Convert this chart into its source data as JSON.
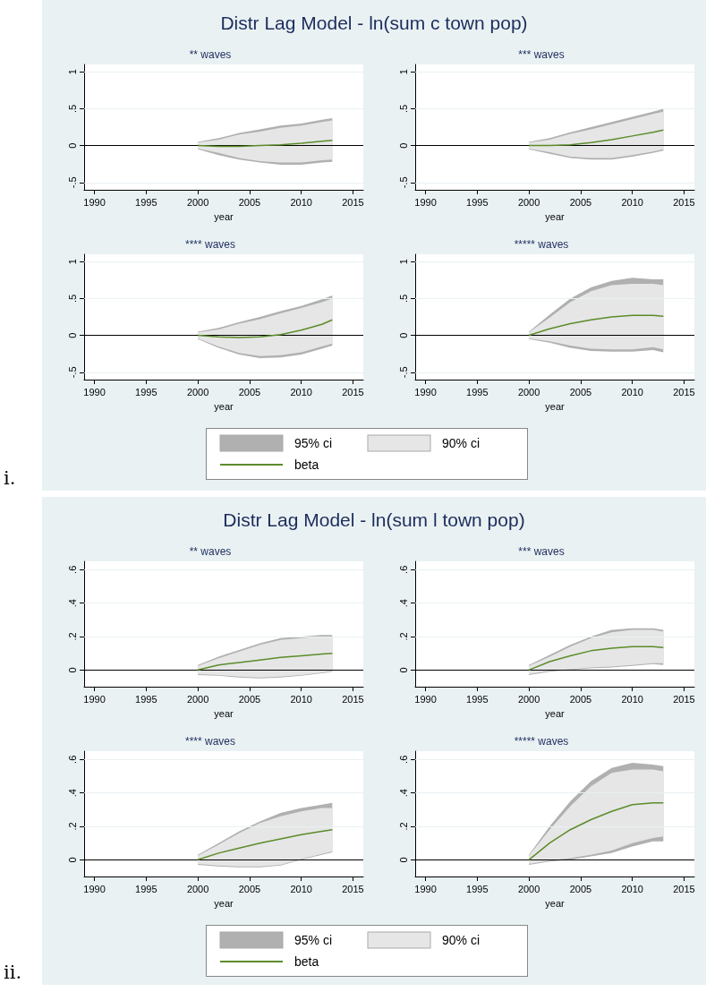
{
  "chart_data": [
    {
      "type": "line",
      "title": "** waves",
      "xlabel": "year",
      "annotations": [
        "Distr Lag Model - ln(sum c town pop)",
        "i."
      ],
      "x": [
        2000,
        2002,
        2004,
        2006,
        2008,
        2010,
        2012,
        2013
      ],
      "xlim": [
        1989,
        2016
      ],
      "xticks": [
        1990,
        1995,
        2000,
        2005,
        2010,
        2015
      ],
      "ylim": [
        -0.6,
        1.1
      ],
      "yticks": [
        {
          "value": -0.5,
          "label": "-.5"
        },
        {
          "value": 0,
          "label": "0"
        },
        {
          "value": 0.5,
          "label": ".5"
        },
        {
          "value": 1,
          "label": "1"
        }
      ],
      "grid": "y",
      "ref_lines": [
        {
          "axis": "y",
          "value": 0,
          "color": "#000000"
        }
      ],
      "series": [
        {
          "color": "#b0b0b0",
          "values": [
            null,
            null,
            null,
            null,
            null,
            null,
            null,
            null
          ],
          "lower": [
            -0.05,
            -0.13,
            -0.19,
            -0.23,
            -0.26,
            -0.26,
            -0.23,
            -0.22
          ],
          "upper": [
            0.05,
            0.1,
            0.17,
            0.22,
            0.27,
            0.3,
            0.35,
            0.37
          ]
        },
        {
          "color": "#e6e6e6",
          "values": [
            null,
            null,
            null,
            null,
            null,
            null,
            null,
            null
          ],
          "lower": [
            -0.04,
            -0.1,
            -0.17,
            -0.21,
            -0.23,
            -0.23,
            -0.2,
            -0.19
          ],
          "upper": [
            0.04,
            0.08,
            0.15,
            0.19,
            0.24,
            0.27,
            0.32,
            0.34
          ]
        },
        {
          "color": "#5b8c2a",
          "values": [
            0,
            -0.01,
            -0.01,
            0,
            0.01,
            0.03,
            0.06,
            0.07
          ]
        }
      ]
    },
    {
      "type": "line",
      "title": "*** waves",
      "xlabel": "year",
      "x": [
        2000,
        2002,
        2004,
        2006,
        2008,
        2010,
        2012,
        2013
      ],
      "xlim": [
        1989,
        2016
      ],
      "xticks": [
        1990,
        1995,
        2000,
        2005,
        2010,
        2015
      ],
      "ylim": [
        -0.6,
        1.1
      ],
      "yticks": [
        {
          "value": -0.5,
          "label": "-.5"
        },
        {
          "value": 0,
          "label": "0"
        },
        {
          "value": 0.5,
          "label": ".5"
        },
        {
          "value": 1,
          "label": "1"
        }
      ],
      "grid": "y",
      "ref_lines": [
        {
          "axis": "y",
          "value": 0,
          "color": "#000000"
        }
      ],
      "series": [
        {
          "color": "#b0b0b0",
          "values": [
            null,
            null,
            null,
            null,
            null,
            null,
            null,
            null
          ],
          "lower": [
            -0.05,
            -0.11,
            -0.17,
            -0.19,
            -0.19,
            -0.15,
            -0.1,
            -0.07
          ],
          "upper": [
            0.05,
            0.1,
            0.18,
            0.25,
            0.32,
            0.39,
            0.46,
            0.5
          ]
        },
        {
          "color": "#e6e6e6",
          "values": [
            null,
            null,
            null,
            null,
            null,
            null,
            null,
            null
          ],
          "lower": [
            -0.04,
            -0.09,
            -0.15,
            -0.17,
            -0.17,
            -0.13,
            -0.08,
            -0.05
          ],
          "upper": [
            0.04,
            0.08,
            0.16,
            0.22,
            0.29,
            0.36,
            0.43,
            0.46
          ]
        },
        {
          "color": "#5b8c2a",
          "values": [
            0,
            0,
            0.01,
            0.04,
            0.08,
            0.13,
            0.18,
            0.21
          ]
        }
      ]
    },
    {
      "type": "line",
      "title": "**** waves",
      "xlabel": "year",
      "x": [
        2000,
        2002,
        2004,
        2006,
        2008,
        2010,
        2012,
        2013
      ],
      "xlim": [
        1989,
        2016
      ],
      "xticks": [
        1990,
        1995,
        2000,
        2005,
        2010,
        2015
      ],
      "ylim": [
        -0.6,
        1.1
      ],
      "yticks": [
        {
          "value": -0.5,
          "label": "-.5"
        },
        {
          "value": 0,
          "label": "0"
        },
        {
          "value": 0.5,
          "label": ".5"
        },
        {
          "value": 1,
          "label": "1"
        }
      ],
      "grid": "y",
      "ref_lines": [
        {
          "axis": "y",
          "value": 0,
          "color": "#000000"
        }
      ],
      "series": [
        {
          "color": "#b0b0b0",
          "values": [
            null,
            null,
            null,
            null,
            null,
            null,
            null,
            null
          ],
          "lower": [
            -0.05,
            -0.17,
            -0.26,
            -0.31,
            -0.3,
            -0.26,
            -0.18,
            -0.14
          ],
          "upper": [
            0.05,
            0.1,
            0.18,
            0.25,
            0.33,
            0.4,
            0.49,
            0.54
          ]
        },
        {
          "color": "#e6e6e6",
          "values": [
            null,
            null,
            null,
            null,
            null,
            null,
            null,
            null
          ],
          "lower": [
            -0.04,
            -0.15,
            -0.24,
            -0.28,
            -0.27,
            -0.23,
            -0.15,
            -0.11
          ],
          "upper": [
            0.04,
            0.08,
            0.16,
            0.22,
            0.3,
            0.37,
            0.45,
            0.5
          ]
        },
        {
          "color": "#5b8c2a",
          "values": [
            0,
            -0.02,
            -0.03,
            -0.02,
            0.01,
            0.07,
            0.15,
            0.21
          ]
        }
      ]
    },
    {
      "type": "line",
      "title": "***** waves",
      "xlabel": "year",
      "legend": "bottom",
      "x": [
        2000,
        2002,
        2004,
        2006,
        2008,
        2010,
        2012,
        2013
      ],
      "xlim": [
        1989,
        2016
      ],
      "xticks": [
        1990,
        1995,
        2000,
        2005,
        2010,
        2015
      ],
      "ylim": [
        -0.6,
        1.1
      ],
      "yticks": [
        {
          "value": -0.5,
          "label": "-.5"
        },
        {
          "value": 0,
          "label": "0"
        },
        {
          "value": 0.5,
          "label": ".5"
        },
        {
          "value": 1,
          "label": "1"
        }
      ],
      "grid": "y",
      "ref_lines": [
        {
          "axis": "y",
          "value": 0,
          "color": "#000000"
        }
      ],
      "series": [
        {
          "name": "95% ci",
          "color": "#b0b0b0",
          "values": [
            null,
            null,
            null,
            null,
            null,
            null,
            null,
            null
          ],
          "lower": [
            -0.05,
            -0.1,
            -0.17,
            -0.21,
            -0.22,
            -0.22,
            -0.2,
            -0.23
          ],
          "upper": [
            0.05,
            0.28,
            0.5,
            0.65,
            0.74,
            0.78,
            0.76,
            0.76
          ]
        },
        {
          "name": "90% ci",
          "color": "#e6e6e6",
          "values": [
            null,
            null,
            null,
            null,
            null,
            null,
            null,
            null
          ],
          "lower": [
            -0.04,
            -0.08,
            -0.14,
            -0.18,
            -0.19,
            -0.19,
            -0.16,
            -0.19
          ],
          "upper": [
            0.04,
            0.24,
            0.45,
            0.6,
            0.68,
            0.7,
            0.7,
            0.68
          ]
        },
        {
          "name": "beta",
          "color": "#5b8c2a",
          "values": [
            0,
            0.09,
            0.16,
            0.21,
            0.25,
            0.27,
            0.27,
            0.26
          ]
        }
      ]
    },
    {
      "type": "line",
      "title": "** waves",
      "xlabel": "year",
      "annotations": [
        "Distr Lag Model - ln(sum l town pop)",
        "ii."
      ],
      "x": [
        2000,
        2002,
        2004,
        2006,
        2008,
        2010,
        2012,
        2013
      ],
      "xlim": [
        1989,
        2016
      ],
      "xticks": [
        1990,
        1995,
        2000,
        2005,
        2010,
        2015
      ],
      "ylim": [
        -0.1,
        0.65
      ],
      "yticks": [
        {
          "value": 0,
          "label": "0"
        },
        {
          "value": 0.2,
          "label": ".2"
        },
        {
          "value": 0.4,
          "label": ".4"
        },
        {
          "value": 0.6,
          "label": ".6"
        }
      ],
      "grid": "y",
      "ref_lines": [
        {
          "axis": "y",
          "value": 0,
          "color": "#000000"
        }
      ],
      "series": [
        {
          "color": "#b0b0b0",
          "values": [
            null,
            null,
            null,
            null,
            null,
            null,
            null,
            null
          ],
          "lower": [
            -0.03,
            -0.035,
            -0.045,
            -0.05,
            -0.045,
            -0.035,
            -0.02,
            -0.01
          ],
          "upper": [
            0.03,
            0.08,
            0.12,
            0.16,
            0.19,
            0.2,
            0.21,
            0.21
          ]
        },
        {
          "color": "#e6e6e6",
          "values": [
            null,
            null,
            null,
            null,
            null,
            null,
            null,
            null
          ],
          "lower": [
            -0.025,
            -0.03,
            -0.04,
            -0.045,
            -0.04,
            -0.03,
            -0.015,
            -0.005
          ],
          "upper": [
            0.025,
            0.07,
            0.11,
            0.15,
            0.18,
            0.19,
            0.2,
            0.2
          ]
        },
        {
          "color": "#5b8c2a",
          "values": [
            0,
            0.03,
            0.045,
            0.06,
            0.075,
            0.085,
            0.095,
            0.1
          ]
        }
      ]
    },
    {
      "type": "line",
      "title": "*** waves",
      "xlabel": "year",
      "x": [
        2000,
        2002,
        2004,
        2006,
        2008,
        2010,
        2012,
        2013
      ],
      "xlim": [
        1989,
        2016
      ],
      "xticks": [
        1990,
        1995,
        2000,
        2005,
        2010,
        2015
      ],
      "ylim": [
        -0.1,
        0.65
      ],
      "yticks": [
        {
          "value": 0,
          "label": "0"
        },
        {
          "value": 0.2,
          "label": ".2"
        },
        {
          "value": 0.4,
          "label": ".4"
        },
        {
          "value": 0.6,
          "label": ".6"
        }
      ],
      "grid": "y",
      "ref_lines": [
        {
          "axis": "y",
          "value": 0,
          "color": "#000000"
        }
      ],
      "series": [
        {
          "color": "#b0b0b0",
          "values": [
            null,
            null,
            null,
            null,
            null,
            null,
            null,
            null
          ],
          "lower": [
            -0.03,
            -0.01,
            0,
            0.01,
            0.015,
            0.025,
            0.035,
            0.03
          ],
          "upper": [
            0.03,
            0.09,
            0.15,
            0.2,
            0.24,
            0.25,
            0.25,
            0.24
          ]
        },
        {
          "color": "#e6e6e6",
          "values": [
            null,
            null,
            null,
            null,
            null,
            null,
            null,
            null
          ],
          "lower": [
            -0.025,
            -0.005,
            0.005,
            0.015,
            0.02,
            0.03,
            0.04,
            0.04
          ],
          "upper": [
            0.025,
            0.08,
            0.14,
            0.19,
            0.225,
            0.24,
            0.24,
            0.23
          ]
        },
        {
          "color": "#5b8c2a",
          "values": [
            0,
            0.05,
            0.085,
            0.115,
            0.13,
            0.14,
            0.14,
            0.135
          ]
        }
      ]
    },
    {
      "type": "line",
      "title": "**** waves",
      "xlabel": "year",
      "x": [
        2000,
        2002,
        2004,
        2006,
        2008,
        2010,
        2012,
        2013
      ],
      "xlim": [
        1989,
        2016
      ],
      "xticks": [
        1990,
        1995,
        2000,
        2005,
        2010,
        2015
      ],
      "ylim": [
        -0.1,
        0.65
      ],
      "yticks": [
        {
          "value": 0,
          "label": "0"
        },
        {
          "value": 0.2,
          "label": ".2"
        },
        {
          "value": 0.4,
          "label": ".4"
        },
        {
          "value": 0.6,
          "label": ".6"
        }
      ],
      "grid": "y",
      "ref_lines": [
        {
          "axis": "y",
          "value": 0,
          "color": "#000000"
        }
      ],
      "series": [
        {
          "color": "#b0b0b0",
          "values": [
            null,
            null,
            null,
            null,
            null,
            null,
            null,
            null
          ],
          "lower": [
            -0.03,
            -0.04,
            -0.045,
            -0.045,
            -0.035,
            0,
            0.03,
            0.045
          ],
          "upper": [
            0.03,
            0.1,
            0.17,
            0.23,
            0.28,
            0.31,
            0.33,
            0.34
          ]
        },
        {
          "color": "#e6e6e6",
          "values": [
            null,
            null,
            null,
            null,
            null,
            null,
            null,
            null
          ],
          "lower": [
            -0.025,
            -0.035,
            -0.04,
            -0.04,
            -0.03,
            0.005,
            0.035,
            0.05
          ],
          "upper": [
            0.025,
            0.09,
            0.16,
            0.22,
            0.26,
            0.29,
            0.31,
            0.31
          ]
        },
        {
          "color": "#5b8c2a",
          "values": [
            0,
            0.04,
            0.07,
            0.1,
            0.125,
            0.15,
            0.17,
            0.18
          ]
        }
      ]
    },
    {
      "type": "line",
      "title": "***** waves",
      "xlabel": "year",
      "legend": "bottom",
      "x": [
        2000,
        2002,
        2004,
        2006,
        2008,
        2010,
        2012,
        2013
      ],
      "xlim": [
        1989,
        2016
      ],
      "xticks": [
        1990,
        1995,
        2000,
        2005,
        2010,
        2015
      ],
      "ylim": [
        -0.1,
        0.65
      ],
      "yticks": [
        {
          "value": 0,
          "label": "0"
        },
        {
          "value": 0.2,
          "label": ".2"
        },
        {
          "value": 0.4,
          "label": ".4"
        },
        {
          "value": 0.6,
          "label": ".6"
        }
      ],
      "grid": "y",
      "ref_lines": [
        {
          "axis": "y",
          "value": 0,
          "color": "#000000"
        }
      ],
      "series": [
        {
          "name": "95% ci",
          "color": "#b0b0b0",
          "values": [
            null,
            null,
            null,
            null,
            null,
            null,
            null,
            null
          ],
          "lower": [
            -0.03,
            -0.01,
            0,
            0.02,
            0.04,
            0.08,
            0.11,
            0.11
          ],
          "upper": [
            0.03,
            0.2,
            0.35,
            0.47,
            0.55,
            0.58,
            0.57,
            0.56
          ]
        },
        {
          "name": "90% ci",
          "color": "#e6e6e6",
          "values": [
            null,
            null,
            null,
            null,
            null,
            null,
            null,
            null
          ],
          "lower": [
            -0.025,
            -0.005,
            0.01,
            0.03,
            0.055,
            0.1,
            0.13,
            0.14
          ],
          "upper": [
            0.025,
            0.18,
            0.32,
            0.44,
            0.52,
            0.54,
            0.54,
            0.53
          ]
        },
        {
          "name": "beta",
          "color": "#5b8c2a",
          "values": [
            0,
            0.1,
            0.18,
            0.24,
            0.29,
            0.33,
            0.34,
            0.34
          ]
        }
      ]
    }
  ]
}
